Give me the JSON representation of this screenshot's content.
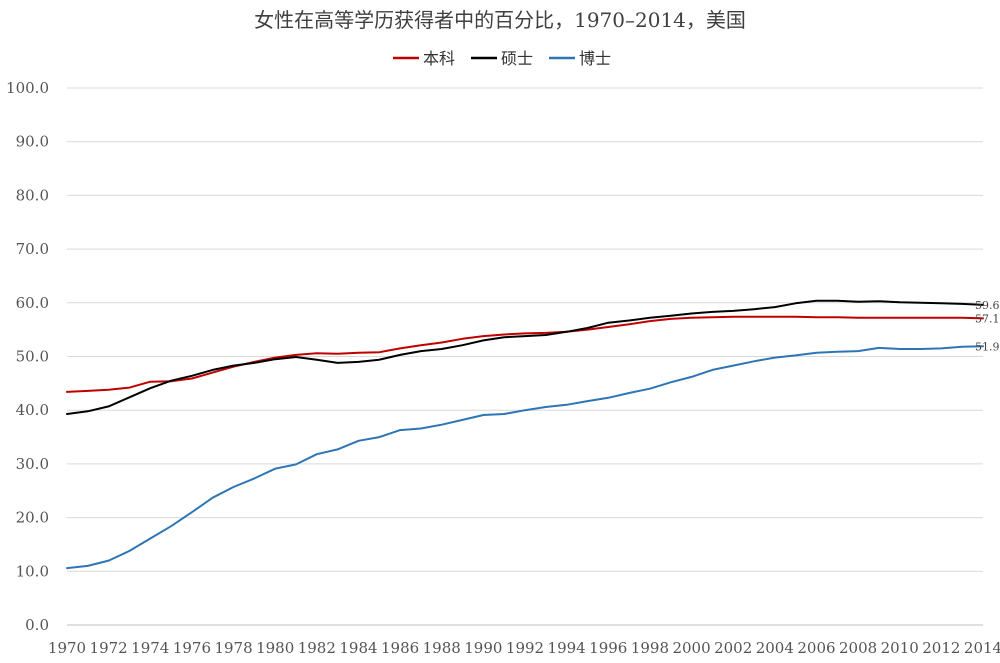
{
  "chart_data": {
    "type": "line",
    "title": "女性在高等学历获得者中的百分比，1970–2014，美国",
    "xlabel": "",
    "ylabel": "",
    "ylim": [
      0,
      100
    ],
    "yticks": [
      "0.0",
      "10.0",
      "20.0",
      "30.0",
      "40.0",
      "50.0",
      "60.0",
      "70.0",
      "80.0",
      "90.0",
      "100.0"
    ],
    "xtick_labels": [
      "1970",
      "1972",
      "1974",
      "1976",
      "1978",
      "1980",
      "1982",
      "1984",
      "1986",
      "1988",
      "1990",
      "1992",
      "1994",
      "1996",
      "1998",
      "2000",
      "2002",
      "2004",
      "2006",
      "2008",
      "2010",
      "2012",
      "2014"
    ],
    "x": [
      1970,
      1971,
      1972,
      1973,
      1974,
      1975,
      1976,
      1977,
      1978,
      1979,
      1980,
      1981,
      1982,
      1983,
      1984,
      1985,
      1986,
      1987,
      1988,
      1989,
      1990,
      1991,
      1992,
      1993,
      1994,
      1995,
      1996,
      1997,
      1998,
      1999,
      2000,
      2001,
      2002,
      2003,
      2004,
      2005,
      2006,
      2007,
      2008,
      2009,
      2010,
      2011,
      2012,
      2013,
      2014
    ],
    "grid": true,
    "legend_position": "top-center",
    "series": [
      {
        "name": "本科",
        "color": "#c00000",
        "values": [
          43.4,
          43.6,
          43.8,
          44.2,
          45.3,
          45.4,
          45.9,
          47.0,
          48.1,
          49.0,
          49.8,
          50.3,
          50.6,
          50.5,
          50.7,
          50.8,
          51.5,
          52.1,
          52.6,
          53.3,
          53.8,
          54.1,
          54.3,
          54.4,
          54.6,
          55.0,
          55.5,
          56.0,
          56.6,
          57.0,
          57.2,
          57.3,
          57.4,
          57.4,
          57.4,
          57.4,
          57.3,
          57.3,
          57.2,
          57.2,
          57.2,
          57.2,
          57.2,
          57.2,
          57.1
        ],
        "end_label": "57.1"
      },
      {
        "name": "硕士",
        "color": "#000000",
        "values": [
          39.3,
          39.8,
          40.7,
          42.4,
          44.1,
          45.5,
          46.4,
          47.5,
          48.3,
          48.8,
          49.5,
          49.9,
          49.4,
          48.8,
          49.0,
          49.4,
          50.3,
          51.0,
          51.4,
          52.1,
          53.0,
          53.6,
          53.8,
          54.0,
          54.6,
          55.3,
          56.3,
          56.7,
          57.2,
          57.6,
          58.0,
          58.3,
          58.5,
          58.8,
          59.2,
          59.9,
          60.4,
          60.4,
          60.2,
          60.3,
          60.1,
          60.0,
          59.9,
          59.8,
          59.6
        ],
        "end_label": "59.6"
      },
      {
        "name": "博士",
        "color": "#2e75b6",
        "values": [
          10.6,
          11.0,
          12.0,
          13.8,
          16.1,
          18.4,
          21.0,
          23.7,
          25.7,
          27.3,
          29.1,
          29.9,
          31.8,
          32.7,
          34.3,
          35.0,
          36.3,
          36.6,
          37.3,
          38.2,
          39.1,
          39.3,
          40.0,
          40.6,
          41.0,
          41.7,
          42.3,
          43.2,
          44.0,
          45.2,
          46.2,
          47.5,
          48.3,
          49.1,
          49.8,
          50.2,
          50.7,
          50.9,
          51.0,
          51.6,
          51.4,
          51.4,
          51.5,
          51.8,
          51.9
        ],
        "end_label": "51.9"
      }
    ]
  }
}
